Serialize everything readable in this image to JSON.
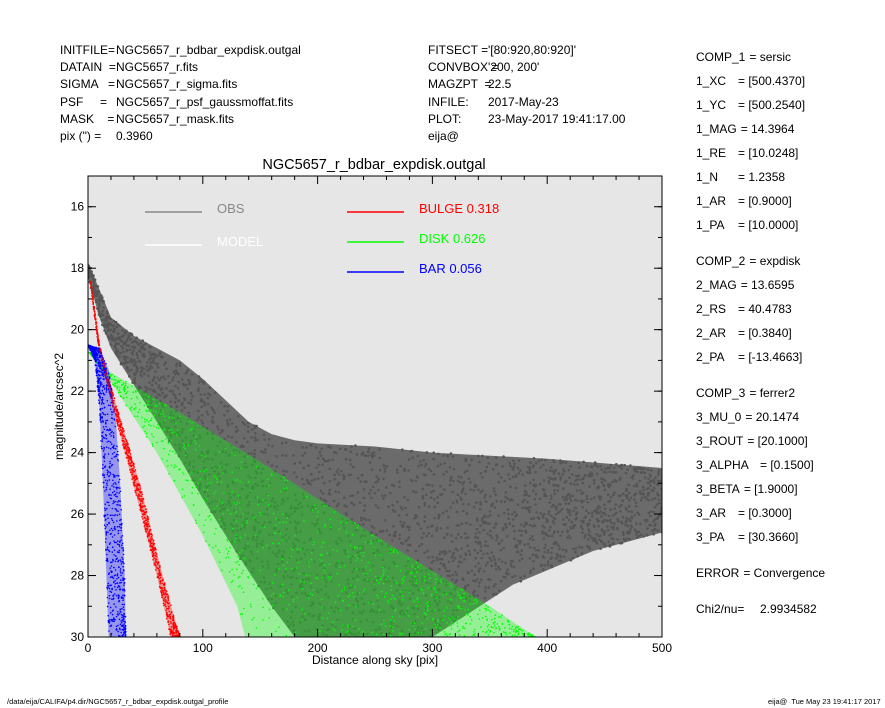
{
  "header_left": [
    {
      "key": "INITFILE=",
      "value": "NGC5657_r_bdbar_expdisk.outgal"
    },
    {
      "key": "DATAIN  =",
      "value": "NGC5657_r.fits"
    },
    {
      "key": "SIGMA   =",
      "value": "NGC5657_r_sigma.fits"
    },
    {
      "key": "PSF     =",
      "value": "NGC5657_r_psf_gaussmoffat.fits"
    },
    {
      "key": "MASK    =",
      "value": "NGC5657_r_mask.fits"
    },
    {
      "key": "pix (\") =",
      "value": "0.3960"
    }
  ],
  "header_mid": [
    {
      "key": "FITSECT =",
      "value": "'[80:920,80:920]'"
    },
    {
      "key": "CONVBOX =",
      "value": "'200, 200'"
    },
    {
      "key": "MAGZPT  =",
      "value": "22.5"
    },
    {
      "key": "INFILE:",
      "value": "2017-May-23"
    },
    {
      "key": "PLOT:",
      "value": "23-May-2017 19:41:17.00"
    },
    {
      "key": "eija@",
      "value": ""
    }
  ],
  "components": [
    {
      "key": "COMP_1",
      "value": "= sersic",
      "gap": 0
    },
    {
      "key": "1_XC",
      "value": "= [500.4370]",
      "gap": 0
    },
    {
      "key": "1_YC",
      "value": "= [500.2540]",
      "gap": 0
    },
    {
      "key": "1_MAG",
      "value": "= 14.3964",
      "gap": 0
    },
    {
      "key": "1_RE",
      "value": "= [10.0248]",
      "gap": 0
    },
    {
      "key": "1_N",
      "value": "= 1.2358",
      "gap": 0
    },
    {
      "key": "1_AR",
      "value": "= [0.9000]",
      "gap": 0
    },
    {
      "key": "1_PA",
      "value": "= [10.0000]",
      "gap": 0
    },
    {
      "key": "COMP_2",
      "value": "= expdisk",
      "gap": 1
    },
    {
      "key": "2_MAG",
      "value": "= 13.6595",
      "gap": 0
    },
    {
      "key": "2_RS",
      "value": "= 40.4783",
      "gap": 0
    },
    {
      "key": "2_AR",
      "value": "= [0.3840]",
      "gap": 0
    },
    {
      "key": "2_PA",
      "value": "= [-13.4663]",
      "gap": 0
    },
    {
      "key": "COMP_3",
      "value": "= ferrer2",
      "gap": 1
    },
    {
      "key": "3_MU_0",
      "value": "= 20.1474",
      "gap": 0
    },
    {
      "key": "3_ROUT",
      "value": "= [20.1000]",
      "gap": 0
    },
    {
      "key": "3_ALPHA",
      "value": "= [0.1500]",
      "gap": 0
    },
    {
      "key": "3_BETA",
      "value": "= [1.9000]",
      "gap": 0
    },
    {
      "key": "3_AR",
      "value": "= [0.3000]",
      "gap": 0
    },
    {
      "key": "3_PA",
      "value": "= [30.3660]",
      "gap": 0
    },
    {
      "key": "ERROR",
      "value": "= Convergence",
      "gap": 1
    },
    {
      "key": "Chi2/nu=",
      "value": "2.9934582",
      "gap": 1
    }
  ],
  "footer": {
    "path": "/data/eija/CALIFA/p4.dir/NGC5657_r_bdbar_expdisk.outgal_profile",
    "stamp": "eija@  Tue May 23 19:41:17 2017"
  },
  "chart_data": {
    "type": "scatter",
    "title": "NGC5657_r_bdbar_expdisk.outgal",
    "xlabel": "Distance along sky [pix]",
    "ylabel": "magnitude/arcsec^2",
    "xlim": [
      0,
      500
    ],
    "ylim": [
      30,
      15
    ],
    "y_inverted": true,
    "x_ticks": [
      "0",
      "100",
      "200",
      "300",
      "400",
      "500"
    ],
    "y_ticks": [
      "16",
      "18",
      "20",
      "22",
      "24",
      "26",
      "28",
      "30"
    ],
    "background": "#e6e6e6",
    "legend": [
      {
        "label": "OBS",
        "value": "",
        "color": "#888888"
      },
      {
        "label": "MODEL",
        "value": "",
        "color": "#ffffff"
      },
      {
        "label": "BULGE",
        "value": "0.318",
        "color": "#ff0000"
      },
      {
        "label": "DISK",
        "value": "0.626",
        "color": "#00ff00"
      },
      {
        "label": "BAR",
        "value": "0.056",
        "color": "#0000ff"
      }
    ],
    "series": [
      {
        "name": "OBS",
        "color": "#555555",
        "upper": [
          [
            0,
            17.8
          ],
          [
            10,
            18.7
          ],
          [
            20,
            19.6
          ],
          [
            40,
            20.2
          ],
          [
            60,
            20.6
          ],
          [
            80,
            21.0
          ],
          [
            100,
            21.6
          ],
          [
            120,
            22.3
          ],
          [
            140,
            23.0
          ],
          [
            160,
            23.4
          ],
          [
            180,
            23.6
          ],
          [
            200,
            23.7
          ],
          [
            250,
            23.8
          ],
          [
            300,
            24.0
          ],
          [
            400,
            24.2
          ],
          [
            500,
            24.5
          ]
        ],
        "lower": [
          [
            0,
            18.3
          ],
          [
            10,
            19.6
          ],
          [
            20,
            20.6
          ],
          [
            40,
            21.8
          ],
          [
            60,
            23.0
          ],
          [
            80,
            24.2
          ],
          [
            100,
            25.5
          ],
          [
            130,
            27.3
          ],
          [
            160,
            29.0
          ],
          [
            180,
            30.0
          ],
          [
            300,
            30.0
          ],
          [
            370,
            28.3
          ],
          [
            440,
            27.2
          ],
          [
            500,
            26.6
          ]
        ]
      },
      {
        "name": "DISK",
        "color": "#00ff00",
        "upper": [
          [
            0,
            20.7
          ],
          [
            20,
            21.4
          ],
          [
            80,
            22.7
          ],
          [
            150,
            24.3
          ],
          [
            250,
            26.7
          ],
          [
            350,
            29.0
          ],
          [
            390,
            30.0
          ]
        ],
        "lower": [
          [
            0,
            20.7
          ],
          [
            20,
            21.7
          ],
          [
            60,
            24.0
          ],
          [
            100,
            26.7
          ],
          [
            130,
            29.0
          ],
          [
            137,
            30.0
          ]
        ]
      },
      {
        "name": "BULGE",
        "color": "#ff0000",
        "upper": [
          [
            2,
            18.3
          ],
          [
            10,
            20.5
          ],
          [
            25,
            22.5
          ],
          [
            45,
            25.0
          ],
          [
            65,
            28.0
          ],
          [
            80,
            30.0
          ]
        ],
        "lower": [
          [
            2,
            18.5
          ],
          [
            10,
            20.8
          ],
          [
            25,
            23.0
          ],
          [
            45,
            25.8
          ],
          [
            60,
            28.0
          ],
          [
            72,
            30.0
          ]
        ]
      },
      {
        "name": "BAR",
        "color": "#0000ff",
        "upper": [
          [
            0,
            20.5
          ],
          [
            10,
            20.6
          ],
          [
            18,
            21.3
          ],
          [
            24,
            22.8
          ],
          [
            28,
            25.0
          ],
          [
            32,
            28.0
          ],
          [
            33,
            30.0
          ]
        ],
        "lower": [
          [
            0,
            20.5
          ],
          [
            6,
            21.0
          ],
          [
            10,
            22.5
          ],
          [
            13,
            25.0
          ],
          [
            16,
            28.0
          ],
          [
            18,
            30.0
          ]
        ]
      }
    ]
  }
}
